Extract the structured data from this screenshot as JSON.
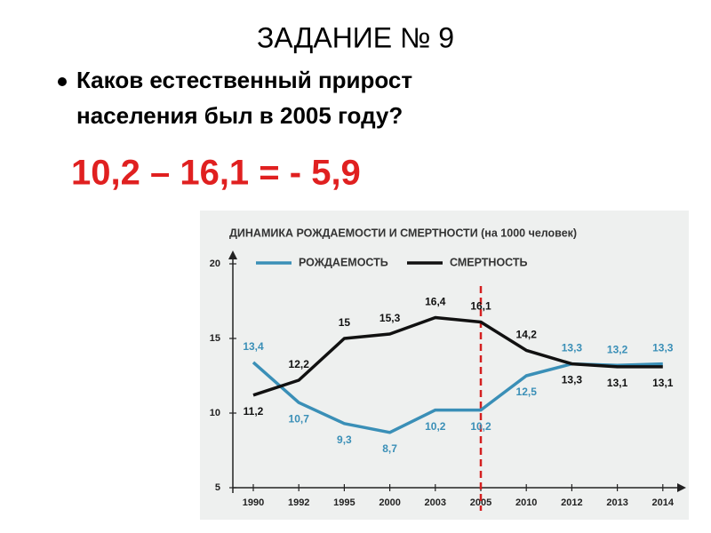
{
  "slide": {
    "title": "ЗАДАНИЕ № 9",
    "bullet_lines": [
      "Каков естественный прирост",
      "населения был в 2005 году?"
    ],
    "formula": "10,2 – 16,1 = - 5,9"
  },
  "chart_data": {
    "type": "line",
    "title": "ДИНАМИКА РОЖДАЕМОСТИ И СМЕРТНОСТИ (на 1000 человек)",
    "categories": [
      "1990",
      "1992",
      "1995",
      "2000",
      "2003",
      "2005",
      "2010",
      "2012",
      "2013",
      "2014"
    ],
    "series": [
      {
        "name": "РОЖДАЕМОСТЬ",
        "color": "#3a8fb7",
        "values": [
          13.4,
          10.7,
          9.3,
          8.7,
          10.2,
          10.2,
          12.5,
          13.3,
          13.2,
          13.3
        ],
        "value_labels": [
          "13,4",
          "10,7",
          "9,3",
          "8,7",
          "10,2",
          "10,2",
          "12,5",
          "13,3",
          "13,2",
          "13,3"
        ]
      },
      {
        "name": "СМЕРТНОСТЬ",
        "color": "#111111",
        "values": [
          11.2,
          12.2,
          15,
          15.3,
          16.4,
          16.1,
          14.2,
          13.3,
          13.1,
          13.1
        ],
        "value_labels": [
          "11,2",
          "12,2",
          "15",
          "15,3",
          "16,4",
          "16,1",
          "14,2",
          "13,3",
          "13,1",
          "13,1"
        ]
      }
    ],
    "ylim": [
      5,
      20
    ],
    "yticks": [
      5,
      10,
      15,
      20
    ],
    "highlight_category": "2005",
    "highlight_color": "#d42020"
  }
}
